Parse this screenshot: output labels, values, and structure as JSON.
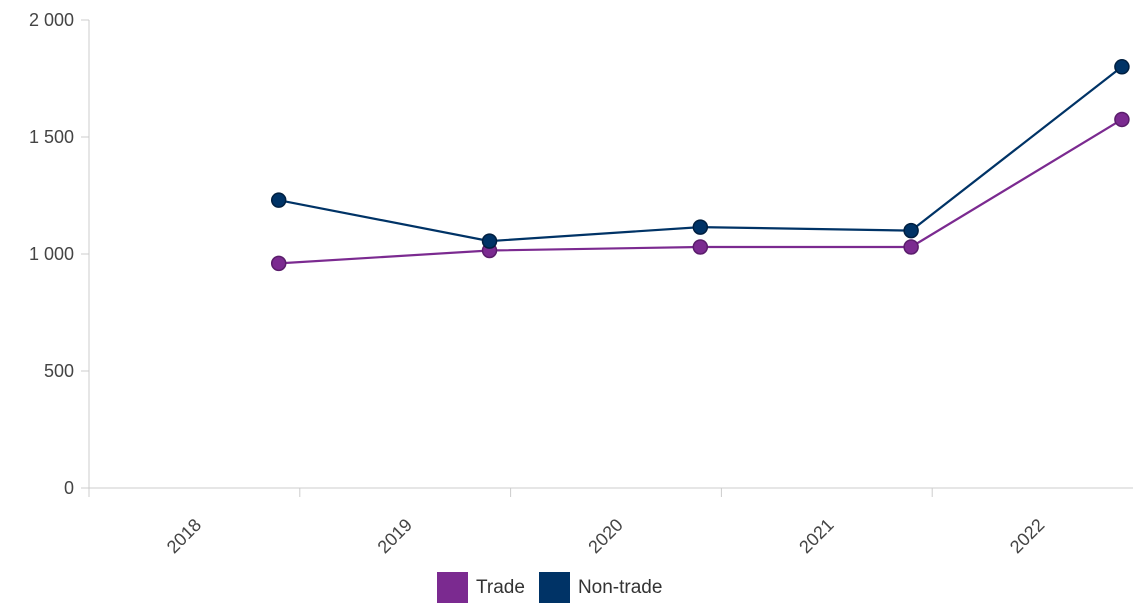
{
  "chart_data": {
    "type": "line",
    "title": "",
    "xlabel": "",
    "ylabel": "",
    "categories": [
      "2018",
      "2019",
      "2020",
      "2021",
      "2022"
    ],
    "ylim": [
      0,
      2000
    ],
    "y_ticks": [
      0,
      500,
      1000,
      1500,
      2000
    ],
    "y_tick_labels": [
      "0",
      "500",
      "1 000",
      "1 500",
      "2 000"
    ],
    "grid": false,
    "legend_position": "bottom-center",
    "series": [
      {
        "name": "Trade",
        "color": "#7B2A90",
        "values": [
          960,
          1015,
          1030,
          1030,
          1575
        ]
      },
      {
        "name": "Non-trade",
        "color": "#003366",
        "values": [
          1230,
          1055,
          1115,
          1100,
          1800
        ]
      }
    ]
  },
  "legend": {
    "items": [
      {
        "label": "Trade",
        "color": "#7B2A90"
      },
      {
        "label": "Non-trade",
        "color": "#003366"
      }
    ]
  }
}
